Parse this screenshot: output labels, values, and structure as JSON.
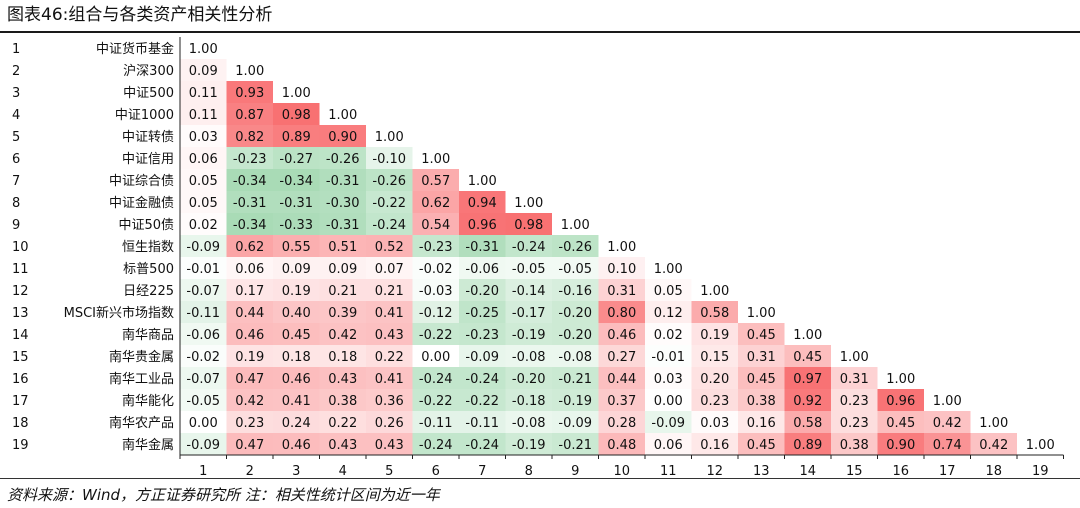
{
  "title": "图表46:组合与各类资产相关性分析",
  "footer": "资料来源：Wind，方正证券研究所 注：相关性统计区间为近一年",
  "chart_data": {
    "type": "heatmap",
    "title": "图表46:组合与各类资产相关性分析",
    "row_labels": [
      "中证货币基金",
      "沪深300",
      "中证500",
      "中证1000",
      "中证转债",
      "中证信用",
      "中证综合债",
      "中证金融债",
      "中证50债",
      "恒生指数",
      "标普500",
      "日经225",
      "MSCI新兴市场指数",
      "南华商品",
      "南华贵金属",
      "南华工业品",
      "南华能化",
      "南华农产品",
      "南华金属"
    ],
    "row_numbers": [
      "1",
      "2",
      "3",
      "4",
      "5",
      "6",
      "7",
      "8",
      "9",
      "10",
      "11",
      "12",
      "13",
      "14",
      "15",
      "16",
      "17",
      "18",
      "19"
    ],
    "col_labels": [
      "1",
      "2",
      "3",
      "4",
      "5",
      "6",
      "7",
      "8",
      "9",
      "10",
      "11",
      "12",
      "13",
      "14",
      "15",
      "16",
      "17",
      "18",
      "19"
    ],
    "values": [
      [
        "1.00"
      ],
      [
        "0.09",
        "1.00"
      ],
      [
        "0.11",
        "0.93",
        "1.00"
      ],
      [
        "0.11",
        "0.87",
        "0.98",
        "1.00"
      ],
      [
        "0.03",
        "0.82",
        "0.89",
        "0.90",
        "1.00"
      ],
      [
        "0.06",
        "-0.23",
        "-0.27",
        "-0.26",
        "-0.10",
        "1.00"
      ],
      [
        "0.05",
        "-0.34",
        "-0.34",
        "-0.31",
        "-0.26",
        "0.57",
        "1.00"
      ],
      [
        "0.05",
        "-0.31",
        "-0.31",
        "-0.30",
        "-0.22",
        "0.62",
        "0.94",
        "1.00"
      ],
      [
        "0.02",
        "-0.34",
        "-0.33",
        "-0.31",
        "-0.24",
        "0.54",
        "0.96",
        "0.98",
        "1.00"
      ],
      [
        "-0.09",
        "0.62",
        "0.55",
        "0.51",
        "0.52",
        "-0.23",
        "-0.31",
        "-0.24",
        "-0.26",
        "1.00"
      ],
      [
        "-0.01",
        "0.06",
        "0.09",
        "0.09",
        "0.07",
        "-0.02",
        "-0.06",
        "-0.05",
        "-0.05",
        "0.10",
        "1.00"
      ],
      [
        "-0.07",
        "0.17",
        "0.19",
        "0.21",
        "0.21",
        "-0.03",
        "-0.20",
        "-0.14",
        "-0.16",
        "0.31",
        "0.05",
        "1.00"
      ],
      [
        "-0.11",
        "0.44",
        "0.40",
        "0.39",
        "0.41",
        "-0.12",
        "-0.25",
        "-0.17",
        "-0.20",
        "0.80",
        "0.12",
        "0.58",
        "1.00"
      ],
      [
        "-0.06",
        "0.46",
        "0.45",
        "0.42",
        "0.43",
        "-0.22",
        "-0.23",
        "-0.19",
        "-0.20",
        "0.46",
        "0.02",
        "0.19",
        "0.45",
        "1.00"
      ],
      [
        "-0.02",
        "0.19",
        "0.18",
        "0.18",
        "0.22",
        "0.00",
        "-0.09",
        "-0.08",
        "-0.08",
        "0.27",
        "-0.01",
        "0.15",
        "0.31",
        "0.45",
        "1.00"
      ],
      [
        "-0.07",
        "0.47",
        "0.46",
        "0.43",
        "0.41",
        "-0.24",
        "-0.24",
        "-0.20",
        "-0.21",
        "0.44",
        "0.03",
        "0.20",
        "0.45",
        "0.97",
        "0.31",
        "1.00"
      ],
      [
        "-0.05",
        "0.42",
        "0.41",
        "0.38",
        "0.36",
        "-0.22",
        "-0.22",
        "-0.18",
        "-0.19",
        "0.37",
        "0.00",
        "0.23",
        "0.38",
        "0.92",
        "0.23",
        "0.96",
        "1.00"
      ],
      [
        "0.00",
        "0.23",
        "0.24",
        "0.22",
        "0.26",
        "-0.11",
        "-0.11",
        "-0.08",
        "-0.09",
        "0.28",
        "-0.09",
        "0.03",
        "0.16",
        "0.58",
        "0.23",
        "0.45",
        "0.42",
        "1.00"
      ],
      [
        "-0.09",
        "0.47",
        "0.46",
        "0.43",
        "0.43",
        "-0.24",
        "-0.24",
        "-0.19",
        "-0.21",
        "0.48",
        "0.06",
        "0.16",
        "0.45",
        "0.89",
        "0.38",
        "0.90",
        "0.74",
        "0.42",
        "1.00"
      ]
    ],
    "colors": {
      "positive": "#f8696b",
      "negative": "#63be7b",
      "neutral": "#ffffff"
    }
  }
}
